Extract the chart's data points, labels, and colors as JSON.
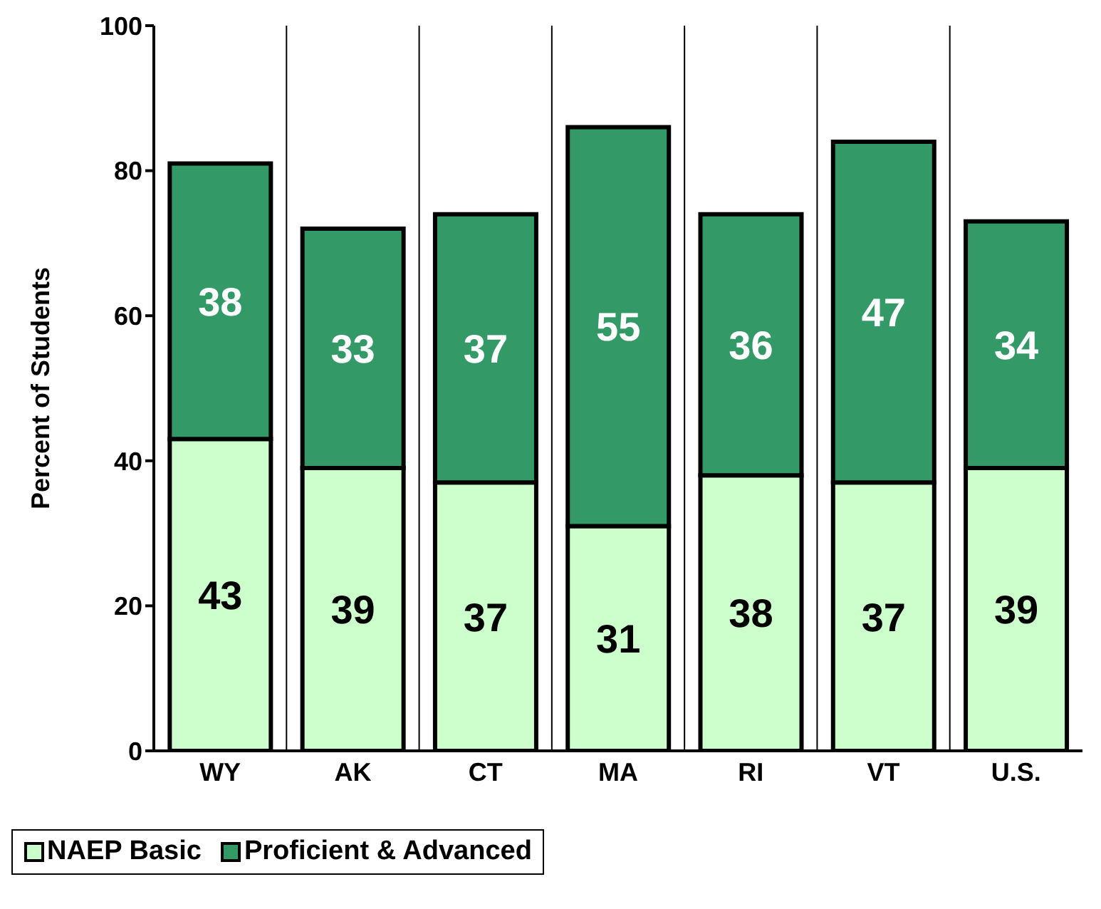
{
  "chart_data": {
    "type": "bar",
    "stacked": true,
    "categories": [
      "WY",
      "AK",
      "CT",
      "MA",
      "RI",
      "VT",
      "U.S."
    ],
    "series": [
      {
        "name": "NAEP Basic",
        "color": "#ccffcc",
        "values": [
          43,
          39,
          37,
          31,
          38,
          37,
          39
        ]
      },
      {
        "name": "Proficient & Advanced",
        "color": "#339966",
        "values": [
          38,
          33,
          37,
          55,
          36,
          47,
          34
        ]
      }
    ],
    "ylabel": "Percent of Students",
    "ylim": [
      0,
      100
    ],
    "yticks": [
      0,
      20,
      40,
      60,
      80,
      100
    ],
    "grid": "x",
    "legend": "bottom left",
    "data_labels": true
  }
}
